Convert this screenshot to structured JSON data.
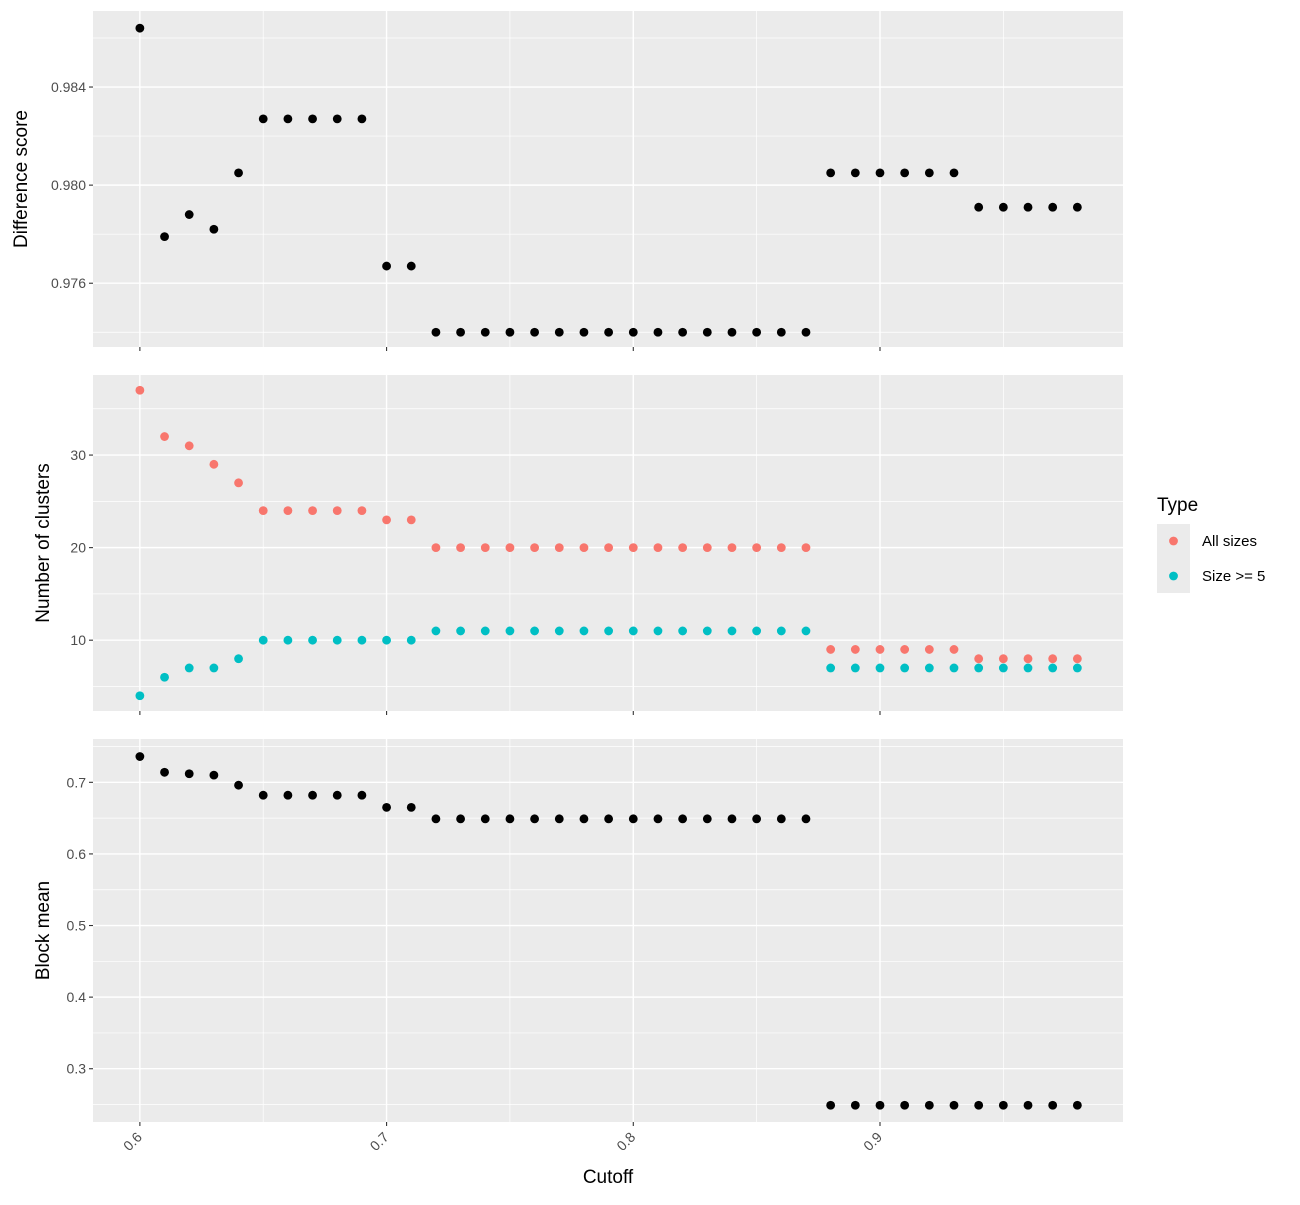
{
  "chart_data": {
    "type": "scatter",
    "x_label": "Cutoff",
    "x_range": [
      0.581,
      0.9985
    ],
    "x_ticks": [
      "0.6",
      "0.7",
      "0.8",
      "0.9"
    ],
    "x": [
      0.6,
      0.61,
      0.62,
      0.63,
      0.64,
      0.65,
      0.66,
      0.67,
      0.68,
      0.69,
      0.7,
      0.71,
      0.72,
      0.73,
      0.74,
      0.75,
      0.76,
      0.77,
      0.78,
      0.79,
      0.8,
      0.81,
      0.82,
      0.83,
      0.84,
      0.85,
      0.86,
      0.87,
      0.88,
      0.89,
      0.9,
      0.91,
      0.92,
      0.93,
      0.94,
      0.95,
      0.96,
      0.97,
      0.98
    ],
    "colors": {
      "panel_bg": "#ebebeb",
      "grid": "#ffffff",
      "point_default": "#000000",
      "all_sizes": "#f8766d",
      "size_ge_5": "#00bfc4"
    },
    "panels": [
      {
        "ylabel": "Difference score",
        "ylim": [
          0.9734,
          0.9871
        ],
        "y_ticks": [
          "0.976",
          "0.980",
          "0.984"
        ],
        "series": [
          {
            "color": "#000000",
            "values": [
              0.9864,
              0.9779,
              0.9788,
              0.9782,
              0.9805,
              0.9827,
              0.9827,
              0.9827,
              0.9827,
              0.9827,
              0.9767,
              0.9767,
              0.974,
              0.974,
              0.974,
              0.974,
              0.974,
              0.974,
              0.974,
              0.974,
              0.974,
              0.974,
              0.974,
              0.974,
              0.974,
              0.974,
              0.974,
              0.974,
              0.9805,
              0.9805,
              0.9805,
              0.9805,
              0.9805,
              0.9805,
              0.9791,
              0.9791,
              0.9791,
              0.9791,
              0.9791
            ]
          }
        ]
      },
      {
        "ylabel": "Number of clusters",
        "ylim": [
          2.35,
          38.65
        ],
        "y_ticks": [
          "10",
          "20",
          "30"
        ],
        "series": [
          {
            "name": "All sizes",
            "color": "#f8766d",
            "values": [
              37,
              32,
              31,
              29,
              27,
              24,
              24,
              24,
              24,
              24,
              23,
              23,
              20,
              20,
              20,
              20,
              20,
              20,
              20,
              20,
              20,
              20,
              20,
              20,
              20,
              20,
              20,
              20,
              9,
              9,
              9,
              9,
              9,
              9,
              8,
              8,
              8,
              8,
              8
            ]
          },
          {
            "name": "Size >= 5",
            "color": "#00bfc4",
            "values": [
              4,
              6,
              7,
              7,
              8,
              10,
              10,
              10,
              10,
              10,
              10,
              10,
              11,
              11,
              11,
              11,
              11,
              11,
              11,
              11,
              11,
              11,
              11,
              11,
              11,
              11,
              11,
              11,
              7,
              7,
              7,
              7,
              7,
              7,
              7,
              7,
              7,
              7,
              7
            ]
          }
        ]
      },
      {
        "ylabel": "Block mean",
        "ylim": [
          0.2256,
          0.7605
        ],
        "y_ticks": [
          "0.3",
          "0.4",
          "0.5",
          "0.6",
          "0.7"
        ],
        "series": [
          {
            "color": "#000000",
            "values": [
              0.736,
              0.714,
              0.712,
              0.71,
              0.696,
              0.682,
              0.682,
              0.682,
              0.682,
              0.682,
              0.665,
              0.665,
              0.649,
              0.649,
              0.649,
              0.649,
              0.649,
              0.649,
              0.649,
              0.649,
              0.649,
              0.649,
              0.649,
              0.649,
              0.649,
              0.649,
              0.649,
              0.649,
              0.249,
              0.249,
              0.249,
              0.249,
              0.249,
              0.249,
              0.249,
              0.249,
              0.249,
              0.249,
              0.249
            ]
          }
        ]
      }
    ],
    "legend": {
      "title": "Type",
      "position": "right",
      "items": [
        {
          "label": "All sizes",
          "color": "#f8766d"
        },
        {
          "label": "Size >= 5",
          "color": "#00bfc4"
        }
      ]
    }
  }
}
